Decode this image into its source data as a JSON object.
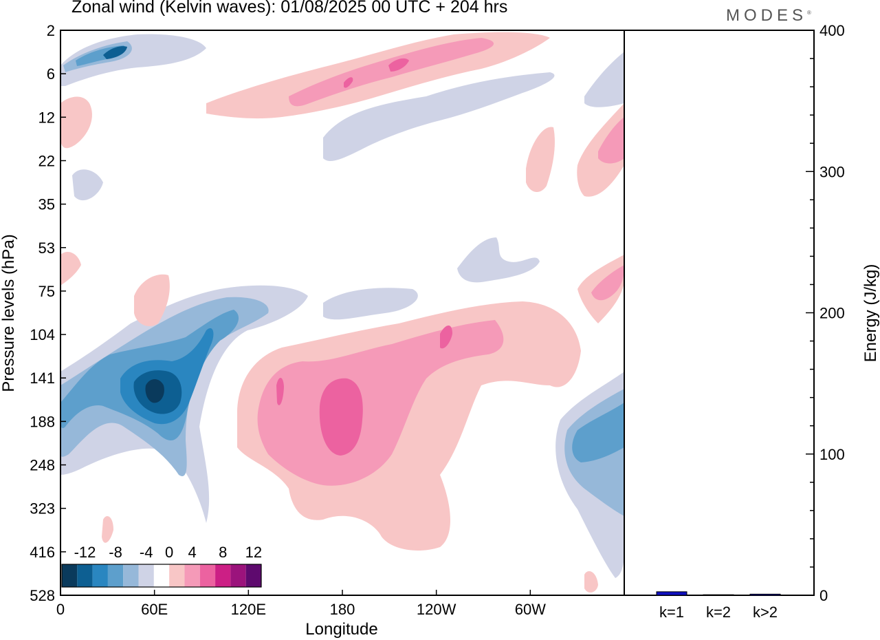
{
  "header": {
    "title": "Zonal wind (Kelvin waves):  01/08/2025  00 UTC  + 204 hrs",
    "brand": "MODES",
    "brand_mark": "®"
  },
  "chart_data": [
    {
      "type": "heatmap",
      "title": "Zonal wind (Kelvin waves):  01/08/2025  00 UTC  + 204 hrs",
      "xlabel": "Longitude",
      "ylabel": "Pressure levels (hPa)",
      "x_ticks": [
        "0",
        "60E",
        "120E",
        "180",
        "120W",
        "60W"
      ],
      "x_tick_values": [
        0,
        60,
        120,
        180,
        240,
        300
      ],
      "xlim": [
        0,
        360
      ],
      "y_ticks": [
        "2",
        "6",
        "12",
        "22",
        "35",
        "53",
        "75",
        "104",
        "141",
        "188",
        "248",
        "323",
        "416",
        "528"
      ],
      "colorbar": {
        "labels": [
          "-12",
          "-8",
          "-4",
          "0",
          "4",
          "8",
          "12"
        ],
        "levels": [
          -14,
          -12,
          -10,
          -8,
          -6,
          -4,
          -2,
          2,
          4,
          6,
          8,
          10,
          12,
          14
        ],
        "colors": [
          "#0a3a5c",
          "#0d5f92",
          "#2a86c0",
          "#5d9fcc",
          "#96b8d9",
          "#cfd3e6",
          "#ffffff",
          "#f8c6c6",
          "#f59ab8",
          "#ec62a0",
          "#cc1f85",
          "#9b137c",
          "#5e0a6e"
        ]
      },
      "features": [
        {
          "name": "strong easterly core",
          "lon": 55,
          "level_hPa": 150,
          "value": -14
        },
        {
          "name": "westerly core",
          "lon": 180,
          "level_hPa": 185,
          "value": 8
        },
        {
          "name": "easterly east Pacific",
          "lon": 340,
          "level_hPa": 190,
          "value": -8
        },
        {
          "name": "upper easterly",
          "lon": 35,
          "level_hPa": 3,
          "value": -12
        }
      ]
    },
    {
      "type": "bar",
      "categories": [
        "k=1",
        "k=2",
        "k>2"
      ],
      "values": [
        2.5,
        0.4,
        0.8
      ],
      "ylabel": "Energy (J/kg)",
      "ylim": [
        0,
        400
      ],
      "y_ticks": [
        "0",
        "100",
        "200",
        "300",
        "400"
      ],
      "bar_color": "#1010c0"
    }
  ]
}
